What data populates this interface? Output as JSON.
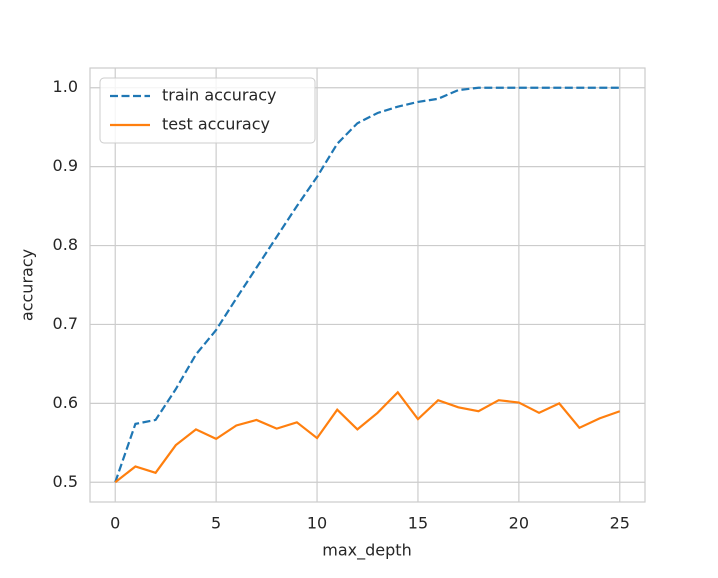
{
  "chart_data": {
    "type": "line",
    "xlabel": "max_depth",
    "ylabel": "accuracy",
    "x": [
      0,
      1,
      2,
      3,
      4,
      5,
      6,
      7,
      8,
      9,
      10,
      11,
      12,
      13,
      14,
      15,
      16,
      17,
      18,
      19,
      20,
      21,
      22,
      23,
      24,
      25
    ],
    "series": [
      {
        "name": "train accuracy",
        "color": "#1f77b4",
        "linestyle": "dashed",
        "values": [
          0.5,
          0.574,
          0.579,
          0.618,
          0.662,
          0.693,
          0.733,
          0.772,
          0.811,
          0.85,
          0.887,
          0.929,
          0.955,
          0.968,
          0.976,
          0.982,
          0.986,
          0.997,
          1.0,
          1.0,
          1.0,
          1.0,
          1.0,
          1.0,
          1.0,
          1.0
        ]
      },
      {
        "name": "test accuracy",
        "color": "#ff7f0e",
        "linestyle": "solid",
        "values": [
          0.5,
          0.52,
          0.512,
          0.547,
          0.567,
          0.555,
          0.572,
          0.579,
          0.568,
          0.576,
          0.556,
          0.592,
          0.567,
          0.588,
          0.614,
          0.58,
          0.604,
          0.595,
          0.59,
          0.604,
          0.601,
          0.588,
          0.6,
          0.569,
          0.581,
          0.59
        ]
      }
    ],
    "xlim": [
      -1.25,
      26.25
    ],
    "ylim": [
      0.475,
      1.025
    ],
    "xticks": [
      0,
      5,
      10,
      15,
      20,
      25
    ],
    "yticks": [
      0.5,
      0.6,
      0.7,
      0.8,
      0.9,
      {
        "value": 1,
        "label": "1.0"
      }
    ],
    "grid": true,
    "legend": "upper left"
  }
}
